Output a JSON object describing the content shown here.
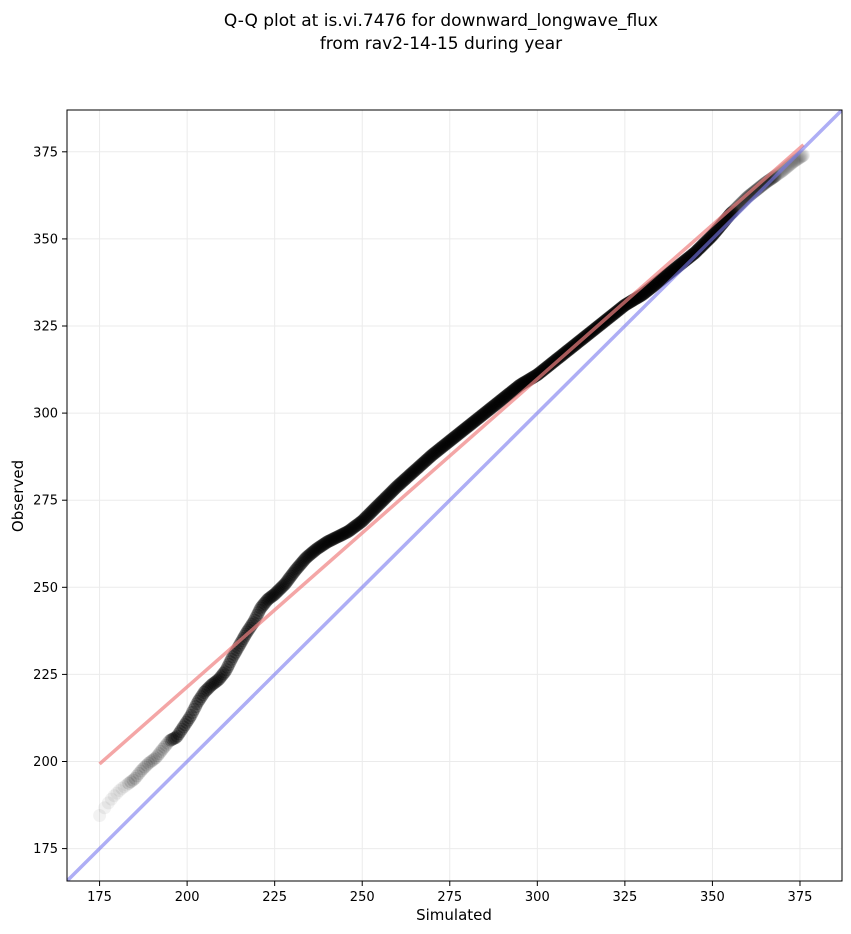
{
  "chart_data": {
    "type": "scatter",
    "title_lines": [
      "Q-Q plot at is.vi.7476 for downward_longwave_flux",
      "from rav2-14-15 during year"
    ],
    "xlabel": "Simulated",
    "ylabel": "Observed",
    "xlim": [
      165.7,
      387.0
    ],
    "ylim": [
      165.7,
      387.0
    ],
    "xticks": [
      175,
      200,
      225,
      250,
      275,
      300,
      325,
      350,
      375
    ],
    "yticks": [
      175,
      200,
      225,
      250,
      275,
      300,
      325,
      350,
      375
    ],
    "grid": true,
    "colors": {
      "points": "#000000",
      "fit_line": "#f4a6a6",
      "identity_line": "#a9a9f2"
    },
    "quantile_curve": {
      "x": [
        175,
        177,
        179,
        181,
        183,
        185,
        187,
        189,
        191,
        193,
        195,
        197,
        199,
        201,
        203,
        205,
        207,
        209,
        211,
        213,
        215,
        217,
        219,
        221,
        223,
        225,
        228,
        231,
        234,
        237,
        240,
        243,
        246,
        250,
        255,
        260,
        265,
        270,
        275,
        280,
        285,
        290,
        295,
        300,
        305,
        310,
        315,
        320,
        325,
        330,
        335,
        340,
        345,
        350,
        355,
        360,
        365,
        370,
        373,
        376
      ],
      "y": [
        184.5,
        187.5,
        190.0,
        192.0,
        193.5,
        195.0,
        197.5,
        199.5,
        201.0,
        203.5,
        206.0,
        207.0,
        210.0,
        213.0,
        217.0,
        220.0,
        222.0,
        223.5,
        226.0,
        230.0,
        233.5,
        237.0,
        240.0,
        244.0,
        246.5,
        248.0,
        251.0,
        255.0,
        258.5,
        261.0,
        263.0,
        264.5,
        266.0,
        269.0,
        274.0,
        279.0,
        283.5,
        288.0,
        292.0,
        296.0,
        300.0,
        304.0,
        308.0,
        311.0,
        315.0,
        319.0,
        323.0,
        327.0,
        331.0,
        334.0,
        338.0,
        342.0,
        346.0,
        351.0,
        357.0,
        362.0,
        366.0,
        369.5,
        372.0,
        374.0
      ]
    },
    "fit_line": {
      "x": [
        175,
        376
      ],
      "y": [
        199.3,
        377.0
      ]
    },
    "identity_line": {
      "x": [
        165.7,
        387.0
      ],
      "y": [
        165.7,
        387.0
      ]
    }
  }
}
